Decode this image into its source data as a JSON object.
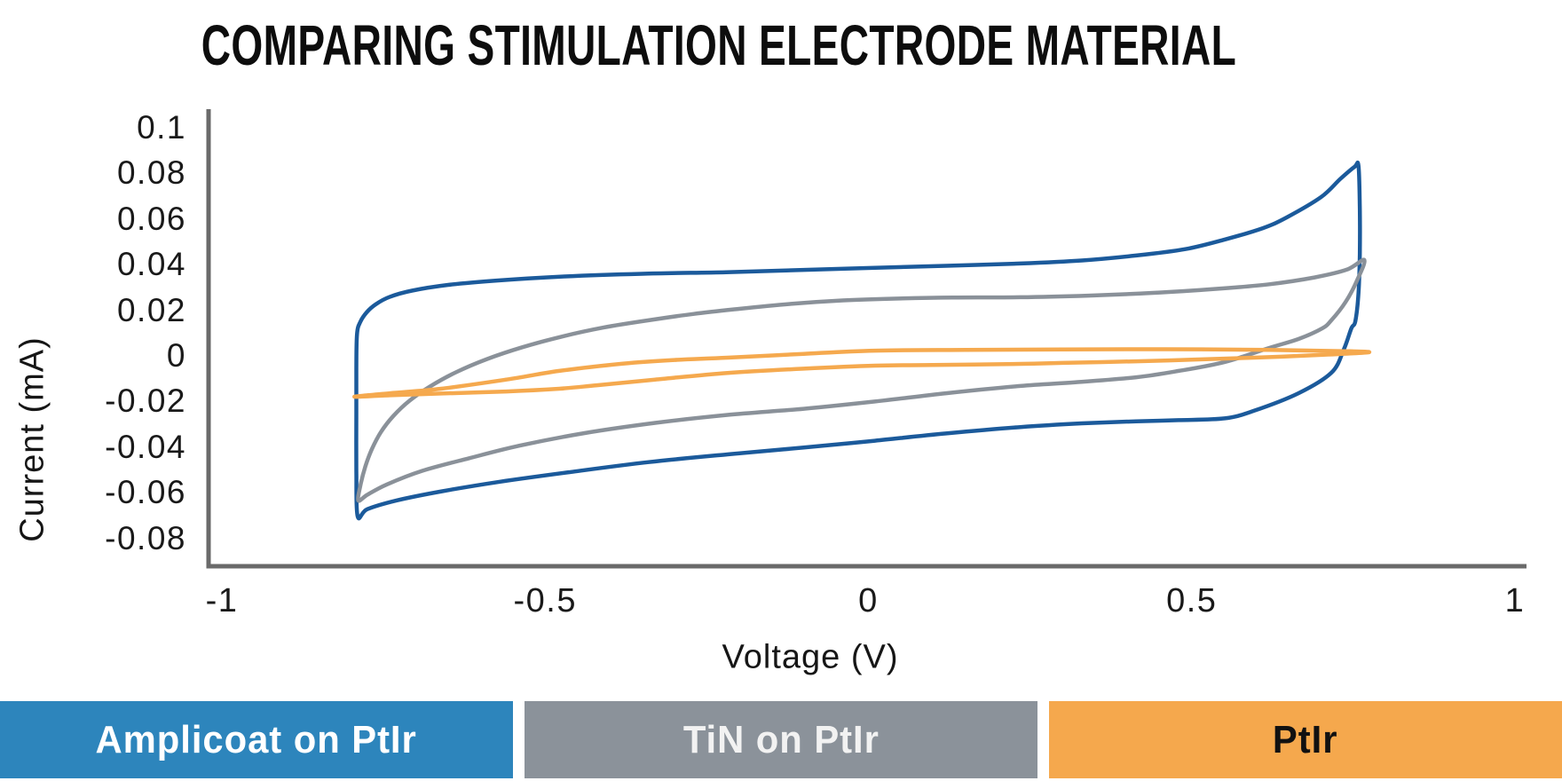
{
  "chart_data": {
    "type": "line",
    "chart_kind": "cyclic-voltammogram",
    "title": "COMPARING STIMULATION ELECTRODE MATERIAL",
    "xlabel": "Voltage (V)",
    "ylabel": "Current (mA)",
    "xlim": [
      -1.02,
      1.02
    ],
    "ylim": [
      -0.092,
      0.108
    ],
    "x_ticks": [
      -1,
      -0.5,
      0,
      0.5,
      1
    ],
    "x_tick_labels": [
      "-1",
      "-0.5",
      "0",
      "0.5",
      "1"
    ],
    "y_ticks": [
      0.1,
      0.08,
      0.06,
      0.04,
      0.02,
      0,
      -0.02,
      -0.04,
      -0.06,
      -0.08
    ],
    "y_tick_labels": [
      "0.1",
      "0.08",
      "0.06",
      "0.04",
      "0.02",
      "0",
      "-0.02",
      "-0.04",
      "-0.06",
      "-0.08"
    ],
    "grid": false,
    "axis_color": "#6a6a6a",
    "tick_text_color": "#191919",
    "legend_position": "bottom-bars",
    "series": [
      {
        "name": "Amplicoat on PtIr",
        "line_color": "#1b5a9b",
        "legend_bg": "#2d85bc",
        "legend_text_color": "#ffffff",
        "closed_loop": true,
        "line_width": 4.5,
        "points_v_ma": [
          [
            -0.791,
            0.01
          ],
          [
            -0.786,
            0.0152
          ],
          [
            -0.776,
            0.0195
          ],
          [
            -0.762,
            0.023
          ],
          [
            -0.741,
            0.0262
          ],
          [
            -0.706,
            0.029
          ],
          [
            -0.65,
            0.0315
          ],
          [
            -0.57,
            0.0335
          ],
          [
            -0.47,
            0.0352
          ],
          [
            -0.35,
            0.0364
          ],
          [
            -0.22,
            0.0371
          ],
          [
            -0.1,
            0.0381
          ],
          [
            0.01,
            0.039
          ],
          [
            0.12,
            0.0399
          ],
          [
            0.235,
            0.0409
          ],
          [
            0.33,
            0.0422
          ],
          [
            0.414,
            0.0444
          ],
          [
            0.49,
            0.0472
          ],
          [
            0.551,
            0.0514
          ],
          [
            0.61,
            0.0564
          ],
          [
            0.647,
            0.0611
          ],
          [
            0.7,
            0.07
          ],
          [
            0.73,
            0.078
          ],
          [
            0.752,
            0.0833
          ],
          [
            0.758,
            0.0837
          ],
          [
            0.76,
            0.065
          ],
          [
            0.76,
            0.045
          ],
          [
            0.758,
            0.028
          ],
          [
            0.753,
            0.0155
          ],
          [
            0.747,
            0.0125
          ],
          [
            0.735,
            0.003
          ],
          [
            0.716,
            -0.007
          ],
          [
            0.665,
            -0.016
          ],
          [
            0.596,
            -0.0237
          ],
          [
            0.551,
            -0.027
          ],
          [
            0.48,
            -0.0278
          ],
          [
            0.414,
            -0.0283
          ],
          [
            0.33,
            -0.0292
          ],
          [
            0.235,
            -0.0308
          ],
          [
            0.12,
            -0.0336
          ],
          [
            0.01,
            -0.0368
          ],
          [
            -0.1,
            -0.0398
          ],
          [
            -0.218,
            -0.0428
          ],
          [
            -0.34,
            -0.0462
          ],
          [
            -0.46,
            -0.0505
          ],
          [
            -0.57,
            -0.0548
          ],
          [
            -0.66,
            -0.059
          ],
          [
            -0.73,
            -0.063
          ],
          [
            -0.775,
            -0.0668
          ],
          [
            -0.79,
            -0.07
          ],
          [
            -0.792,
            -0.05
          ],
          [
            -0.792,
            -0.025
          ],
          [
            -0.792,
            -0.005
          ]
        ]
      },
      {
        "name": "TiN on PtIr",
        "line_color": "#8a9199",
        "legend_bg": "#8b929a",
        "legend_text_color": "#f2f2f2",
        "closed_loop": true,
        "line_width": 4.5,
        "points_v_ma": [
          [
            -0.789,
            -0.063
          ],
          [
            -0.785,
            -0.0555
          ],
          [
            -0.778,
            -0.048
          ],
          [
            -0.768,
            -0.0405
          ],
          [
            -0.754,
            -0.033
          ],
          [
            -0.735,
            -0.026
          ],
          [
            -0.71,
            -0.0193
          ],
          [
            -0.678,
            -0.013
          ],
          [
            -0.638,
            -0.0068
          ],
          [
            -0.59,
            -0.001
          ],
          [
            -0.535,
            0.0042
          ],
          [
            -0.475,
            0.0088
          ],
          [
            -0.41,
            0.0128
          ],
          [
            -0.34,
            0.016
          ],
          [
            -0.27,
            0.0188
          ],
          [
            -0.2,
            0.021
          ],
          [
            -0.12,
            0.0232
          ],
          [
            -0.04,
            0.0247
          ],
          [
            0.04,
            0.0255
          ],
          [
            0.13,
            0.026
          ],
          [
            0.235,
            0.0261
          ],
          [
            0.34,
            0.0268
          ],
          [
            0.44,
            0.028
          ],
          [
            0.54,
            0.0298
          ],
          [
            0.62,
            0.0318
          ],
          [
            0.69,
            0.0348
          ],
          [
            0.74,
            0.0382
          ],
          [
            0.767,
            0.0424
          ],
          [
            0.755,
            0.033
          ],
          [
            0.738,
            0.024
          ],
          [
            0.716,
            0.016
          ],
          [
            0.702,
            0.0125
          ],
          [
            0.665,
            0.0078
          ],
          [
            0.62,
            0.0039
          ],
          [
            0.551,
            -0.0023
          ],
          [
            0.48,
            -0.0062
          ],
          [
            0.414,
            -0.009
          ],
          [
            0.32,
            -0.0112
          ],
          [
            0.235,
            -0.0128
          ],
          [
            0.12,
            -0.016
          ],
          [
            0.01,
            -0.0196
          ],
          [
            -0.1,
            -0.0228
          ],
          [
            -0.218,
            -0.0255
          ],
          [
            -0.33,
            -0.029
          ],
          [
            -0.44,
            -0.0335
          ],
          [
            -0.54,
            -0.039
          ],
          [
            -0.618,
            -0.0445
          ],
          [
            -0.69,
            -0.05
          ],
          [
            -0.745,
            -0.056
          ],
          [
            -0.775,
            -0.0605
          ]
        ]
      },
      {
        "name": "PtIr",
        "line_color": "#f5a94e",
        "legend_bg": "#f5a84d",
        "legend_text_color": "#111111",
        "closed_loop": true,
        "line_width": 4.5,
        "points_v_ma": [
          [
            -0.795,
            -0.0175
          ],
          [
            -0.74,
            -0.016
          ],
          [
            -0.661,
            -0.014
          ],
          [
            -0.56,
            -0.01
          ],
          [
            -0.478,
            -0.0062
          ],
          [
            -0.38,
            -0.003
          ],
          [
            -0.3,
            -0.0014
          ],
          [
            -0.218,
            -0.0004
          ],
          [
            -0.1,
            0.0013
          ],
          [
            0.01,
            0.0027
          ],
          [
            0.15,
            0.003
          ],
          [
            0.3,
            0.0032
          ],
          [
            0.46,
            0.0033
          ],
          [
            0.62,
            0.003
          ],
          [
            0.73,
            0.0025
          ],
          [
            0.774,
            0.002
          ],
          [
            0.7,
            0.0008
          ],
          [
            0.596,
            -0.0004
          ],
          [
            0.5,
            -0.0013
          ],
          [
            0.414,
            -0.002
          ],
          [
            0.3,
            -0.0027
          ],
          [
            0.235,
            -0.0031
          ],
          [
            0.1,
            -0.0036
          ],
          [
            0.01,
            -0.0039
          ],
          [
            -0.1,
            -0.0052
          ],
          [
            -0.218,
            -0.0071
          ],
          [
            -0.33,
            -0.01
          ],
          [
            -0.42,
            -0.0125
          ],
          [
            -0.478,
            -0.014
          ],
          [
            -0.56,
            -0.0152
          ],
          [
            -0.661,
            -0.0161
          ],
          [
            -0.74,
            -0.0169
          ]
        ]
      }
    ]
  }
}
